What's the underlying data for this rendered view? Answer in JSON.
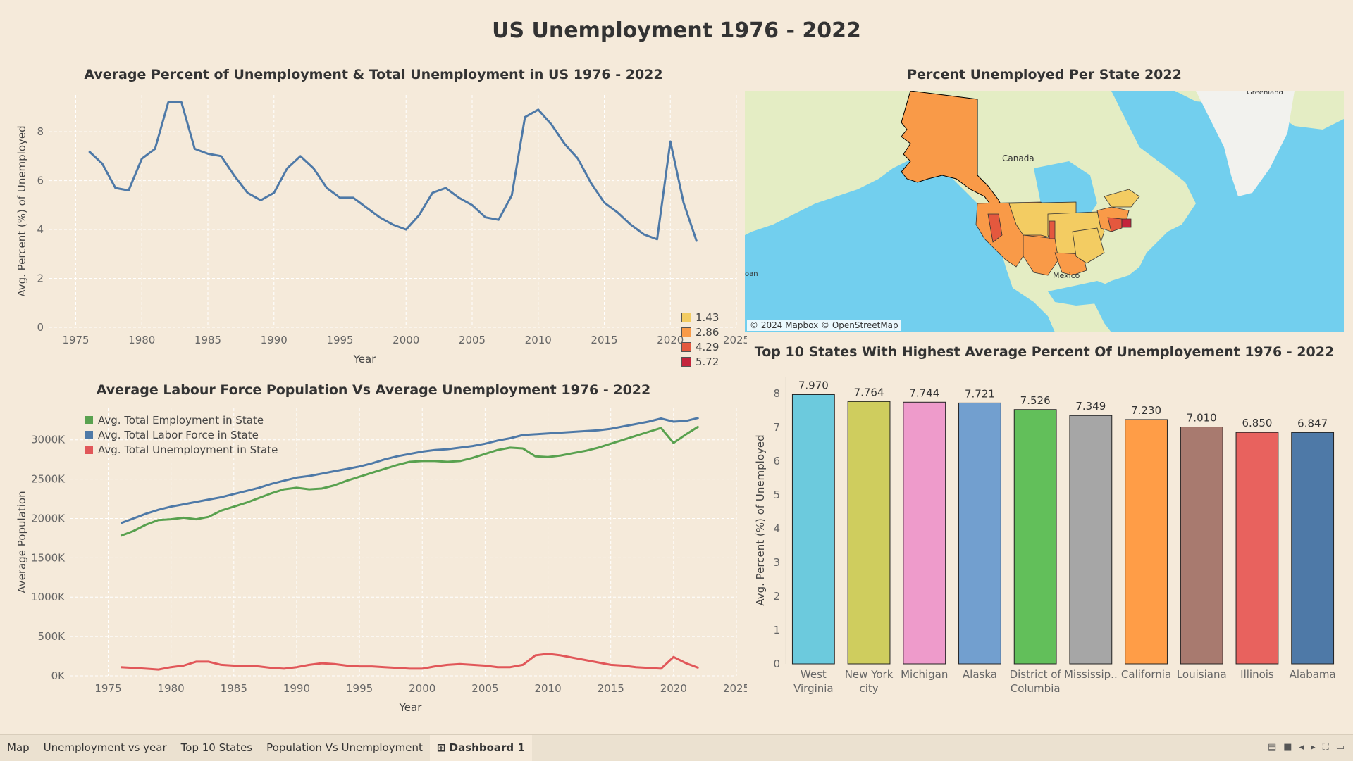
{
  "dashboard": {
    "title": "US Unemployment 1976 - 2022"
  },
  "map": {
    "title": "Percent Unemployed Per State 2022",
    "labels": {
      "canada": "Canada",
      "mexico": "Mexico",
      "greenland": "Greenland",
      "edge": "oan"
    },
    "attribution": "© 2024 Mapbox © OpenStreetMap",
    "legend": [
      {
        "label": "1.43",
        "color": "#f3cc62"
      },
      {
        "label": "2.86",
        "color": "#f99a48"
      },
      {
        "label": "4.29",
        "color": "#e4583e"
      },
      {
        "label": "5.72",
        "color": "#c4243c"
      }
    ],
    "colors": {
      "water": "#72cfee",
      "land": "#e4edc4",
      "ice": "#f2f2ee"
    }
  },
  "tabs": [
    {
      "label": "Map",
      "active": false
    },
    {
      "label": "Unemployment vs year",
      "active": false
    },
    {
      "label": "Top 10 States",
      "active": false
    },
    {
      "label": "Population Vs Unemployment",
      "active": false
    },
    {
      "label": "Dashboard 1",
      "active": true
    }
  ],
  "chart_data": [
    {
      "type": "line",
      "title": "Average Percent of Unemployment & Total Unemployment in US 1976 - 2022",
      "xlabel": "Year",
      "ylabel": "Avg. Percent (%) of Unemployed",
      "xlim": [
        1973,
        2025
      ],
      "ylim": [
        0,
        9.5
      ],
      "xticks": [
        1975,
        1980,
        1985,
        1990,
        1995,
        2000,
        2005,
        2010,
        2015,
        2020,
        2025
      ],
      "yticks": [
        0,
        2,
        4,
        6,
        8
      ],
      "grid": true,
      "series": [
        {
          "color": "#4e79a7",
          "x": [
            1976,
            1977,
            1978,
            1979,
            1980,
            1981,
            1982,
            1983,
            1984,
            1985,
            1986,
            1987,
            1988,
            1989,
            1990,
            1991,
            1992,
            1993,
            1994,
            1995,
            1996,
            1997,
            1998,
            1999,
            2000,
            2001,
            2002,
            2003,
            2004,
            2005,
            2006,
            2007,
            2008,
            2009,
            2010,
            2011,
            2012,
            2013,
            2014,
            2015,
            2016,
            2017,
            2018,
            2019,
            2020,
            2021,
            2022
          ],
          "values": [
            7.2,
            6.7,
            5.7,
            5.6,
            6.9,
            7.3,
            9.2,
            9.2,
            7.3,
            7.1,
            7.0,
            6.2,
            5.5,
            5.2,
            5.5,
            6.5,
            7.0,
            6.5,
            5.7,
            5.3,
            5.3,
            4.9,
            4.5,
            4.2,
            4.0,
            4.6,
            5.5,
            5.7,
            5.3,
            5.0,
            4.5,
            4.4,
            5.4,
            8.6,
            8.9,
            8.3,
            7.5,
            6.9,
            5.9,
            5.1,
            4.7,
            4.2,
            3.8,
            3.6,
            7.6,
            5.1,
            3.5
          ]
        }
      ]
    },
    {
      "type": "line",
      "title": "Average Labour Force Population Vs Average Unemployment 1976 - 2022",
      "xlabel": "Year",
      "ylabel": "Average Population",
      "xlim": [
        1972,
        2025
      ],
      "ylim": [
        0,
        3400000
      ],
      "xticks": [
        1975,
        1980,
        1985,
        1990,
        1995,
        2000,
        2005,
        2010,
        2015,
        2020,
        2025
      ],
      "yticks": [
        0,
        500000,
        1000000,
        1500000,
        2000000,
        2500000,
        3000000
      ],
      "ytick_labels": [
        "0K",
        "500K",
        "1000K",
        "1500K",
        "2000K",
        "2500K",
        "3000K"
      ],
      "grid": true,
      "legend_position": "top-left",
      "x": [
        1976,
        1977,
        1978,
        1979,
        1980,
        1981,
        1982,
        1983,
        1984,
        1985,
        1986,
        1987,
        1988,
        1989,
        1990,
        1991,
        1992,
        1993,
        1994,
        1995,
        1996,
        1997,
        1998,
        1999,
        2000,
        2001,
        2002,
        2003,
        2004,
        2005,
        2006,
        2007,
        2008,
        2009,
        2010,
        2011,
        2012,
        2013,
        2014,
        2015,
        2016,
        2017,
        2018,
        2019,
        2020,
        2021,
        2022
      ],
      "series": [
        {
          "name": "Avg. Total Employment in State",
          "color": "#59a14f",
          "values": [
            1780000,
            1840000,
            1920000,
            1980000,
            1990000,
            2010000,
            1990000,
            2020000,
            2100000,
            2150000,
            2200000,
            2260000,
            2320000,
            2370000,
            2390000,
            2370000,
            2380000,
            2420000,
            2480000,
            2530000,
            2580000,
            2630000,
            2680000,
            2720000,
            2730000,
            2730000,
            2720000,
            2730000,
            2770000,
            2820000,
            2870000,
            2900000,
            2890000,
            2790000,
            2780000,
            2800000,
            2830000,
            2860000,
            2900000,
            2950000,
            3000000,
            3050000,
            3100000,
            3150000,
            2960000,
            3070000,
            3170000
          ]
        },
        {
          "name": "Avg. Total Labor Force in State",
          "color": "#4e79a7",
          "values": [
            1940000,
            2000000,
            2060000,
            2110000,
            2150000,
            2180000,
            2210000,
            2240000,
            2270000,
            2310000,
            2350000,
            2390000,
            2440000,
            2480000,
            2520000,
            2540000,
            2570000,
            2600000,
            2630000,
            2660000,
            2700000,
            2750000,
            2790000,
            2820000,
            2850000,
            2870000,
            2880000,
            2900000,
            2920000,
            2950000,
            2990000,
            3020000,
            3060000,
            3070000,
            3080000,
            3090000,
            3100000,
            3110000,
            3120000,
            3140000,
            3170000,
            3200000,
            3230000,
            3270000,
            3230000,
            3240000,
            3280000
          ]
        },
        {
          "name": "Avg. Total Unemployment in State",
          "color": "#e15759",
          "values": [
            110000,
            100000,
            90000,
            80000,
            110000,
            130000,
            180000,
            180000,
            140000,
            130000,
            130000,
            120000,
            100000,
            90000,
            110000,
            140000,
            160000,
            150000,
            130000,
            120000,
            120000,
            110000,
            100000,
            90000,
            90000,
            120000,
            140000,
            150000,
            140000,
            130000,
            110000,
            110000,
            140000,
            260000,
            280000,
            260000,
            230000,
            200000,
            170000,
            140000,
            130000,
            110000,
            100000,
            90000,
            240000,
            160000,
            100000
          ]
        }
      ]
    },
    {
      "type": "bar",
      "title": "Top 10 States With Highest Average Percent Of Unemployement 1976 - 2022",
      "ylabel": "Avg. Percent (%) of Unemployed",
      "ylim": [
        0,
        8.5
      ],
      "yticks": [
        0,
        1,
        2,
        3,
        4,
        5,
        6,
        7,
        8
      ],
      "categories": [
        [
          "West",
          "Virginia"
        ],
        [
          "New York",
          "city"
        ],
        [
          "Michigan"
        ],
        [
          "Alaska"
        ],
        [
          "District of",
          "Columbia"
        ],
        [
          "Mississip.."
        ],
        [
          "California"
        ],
        [
          "Louisiana"
        ],
        [
          "Illinois"
        ],
        [
          "Alabama"
        ]
      ],
      "values": [
        7.97,
        7.764,
        7.744,
        7.721,
        7.526,
        7.349,
        7.23,
        7.01,
        6.85,
        6.847
      ],
      "value_labels": [
        "7.970",
        "7.764",
        "7.744",
        "7.721",
        "7.526",
        "7.349",
        "7.230",
        "7.010",
        "6.850",
        "6.847"
      ],
      "colors": [
        "#6ccadd",
        "#cfcd5e",
        "#ee9bcb",
        "#729fcf",
        "#62bf5a",
        "#a6a6a6",
        "#ff9d47",
        "#a87a6f",
        "#e8625e",
        "#4e79a7"
      ]
    }
  ]
}
